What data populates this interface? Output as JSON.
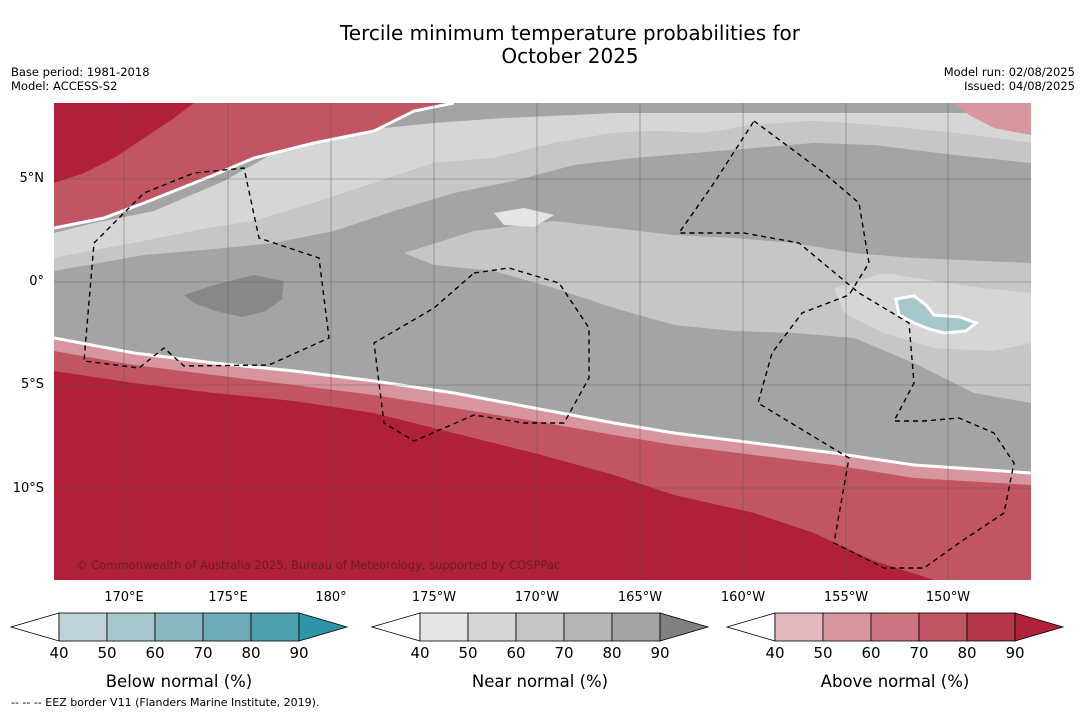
{
  "title": {
    "line1": "Tercile minimum temperature probabilities for",
    "line2": "October 2025"
  },
  "info_left": {
    "base_period": "Base period: 1981-2018",
    "model": "Model: ACCESS-S2"
  },
  "info_right": {
    "model_run": "Model run: 02/08/2025",
    "issued": "Issued: 04/08/2025"
  },
  "map": {
    "latitude_labels": [
      "5°N",
      "0°",
      "5°S",
      "10°S"
    ],
    "longitude_labels": [
      "170°E",
      "175°E",
      "180°",
      "175°W",
      "170°W",
      "165°W",
      "160°W",
      "155°W",
      "150°W"
    ],
    "grid": true,
    "copyright": "© Commonwealth of Australia 2025, Bureau of Meteorology, supported by COSPPac"
  },
  "colorbars": [
    {
      "label": "Below normal (%)",
      "ticks": [
        "40",
        "50",
        "60",
        "70",
        "80",
        "90"
      ],
      "colors": [
        "#bdd2d9",
        "#a7c6cc",
        "#8ab6bf",
        "#6daab5",
        "#4fa0ae",
        "#2e95a8"
      ]
    },
    {
      "label": "Near normal (%)",
      "ticks": [
        "40",
        "50",
        "60",
        "70",
        "80",
        "90"
      ],
      "colors": [
        "#e5e5e5",
        "#d6d6d6",
        "#c6c6c6",
        "#b5b5b5",
        "#a4a4a4",
        "#808080"
      ]
    },
    {
      "label": "Above normal (%)",
      "ticks": [
        "40",
        "50",
        "60",
        "70",
        "80",
        "90"
      ],
      "colors": [
        "#e2b7bd",
        "#d7959d",
        "#cc7580",
        "#c25563",
        "#b4364a",
        "#b0203a"
      ]
    }
  ],
  "footer": "-- -- -- EEZ border V11 (Flanders Marine Institute, 2019)."
}
